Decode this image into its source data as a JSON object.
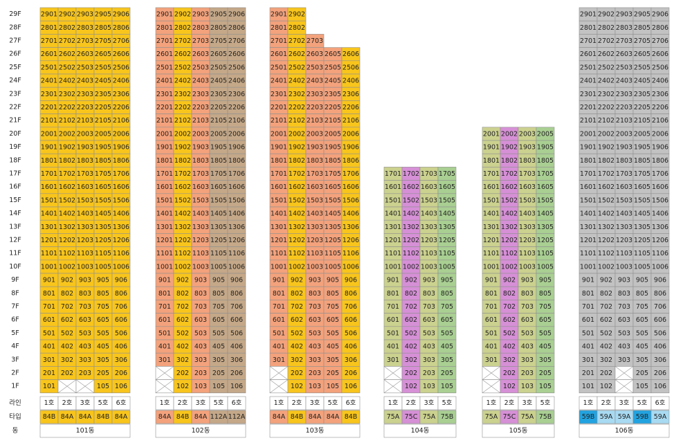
{
  "floors": [
    "29F",
    "28F",
    "27F",
    "26F",
    "25F",
    "24F",
    "23F",
    "22F",
    "21F",
    "20F",
    "19F",
    "18F",
    "17F",
    "16F",
    "15F",
    "14F",
    "13F",
    "12F",
    "11F",
    "10F",
    "9F",
    "8F",
    "7F",
    "6F",
    "5F",
    "4F",
    "3F",
    "2F",
    "1F"
  ],
  "row_headers": [
    "라인",
    "타입",
    "동"
  ],
  "buildings": [
    {
      "name": "101동",
      "lines": [
        "1호",
        "2호",
        "3호",
        "5호",
        "6호"
      ],
      "types": [
        "84B",
        "84A",
        "84A",
        "84B",
        "84A"
      ],
      "colors": [
        "#f8c51c",
        "#f8c51c",
        "#f8c51c",
        "#f8c51c",
        "#f8c51c"
      ],
      "type_colors": [
        "#f8c51c",
        "#f8c51c",
        "#f8c51c",
        "#f8c51c",
        "#f8c51c"
      ],
      "rows": [
        [
          "2901",
          "2902",
          "2903",
          "2905",
          "2906"
        ],
        [
          "2801",
          "2802",
          "2803",
          "2805",
          "2806"
        ],
        [
          "2701",
          "2702",
          "2703",
          "2705",
          "2706"
        ],
        [
          "2601",
          "2602",
          "2603",
          "2605",
          "2606"
        ],
        [
          "2501",
          "2502",
          "2503",
          "2505",
          "2506"
        ],
        [
          "2401",
          "2402",
          "2403",
          "2405",
          "2406"
        ],
        [
          "2301",
          "2302",
          "2303",
          "2305",
          "2306"
        ],
        [
          "2201",
          "2202",
          "2203",
          "2205",
          "2206"
        ],
        [
          "2101",
          "2102",
          "2103",
          "2105",
          "2106"
        ],
        [
          "2001",
          "2002",
          "2003",
          "2005",
          "2006"
        ],
        [
          "1901",
          "1902",
          "1903",
          "1905",
          "1906"
        ],
        [
          "1801",
          "1802",
          "1803",
          "1805",
          "1806"
        ],
        [
          "1701",
          "1702",
          "1703",
          "1705",
          "1706"
        ],
        [
          "1601",
          "1602",
          "1603",
          "1605",
          "1606"
        ],
        [
          "1501",
          "1502",
          "1503",
          "1505",
          "1506"
        ],
        [
          "1401",
          "1402",
          "1403",
          "1405",
          "1406"
        ],
        [
          "1301",
          "1302",
          "1303",
          "1305",
          "1306"
        ],
        [
          "1201",
          "1202",
          "1203",
          "1205",
          "1206"
        ],
        [
          "1101",
          "1102",
          "1103",
          "1105",
          "1106"
        ],
        [
          "1001",
          "1002",
          "1003",
          "1005",
          "1006"
        ],
        [
          "901",
          "902",
          "903",
          "905",
          "906"
        ],
        [
          "801",
          "802",
          "803",
          "805",
          "806"
        ],
        [
          "701",
          "702",
          "703",
          "705",
          "706"
        ],
        [
          "601",
          "602",
          "603",
          "605",
          "606"
        ],
        [
          "501",
          "502",
          "503",
          "505",
          "506"
        ],
        [
          "401",
          "402",
          "403",
          "405",
          "406"
        ],
        [
          "301",
          "302",
          "303",
          "305",
          "306"
        ],
        [
          "201",
          "202",
          "203",
          "205",
          "206"
        ],
        [
          "101",
          null,
          null,
          "105",
          "106"
        ]
      ]
    },
    {
      "name": "102동",
      "lines": [
        "1호",
        "2호",
        "3호",
        "5호",
        "6호"
      ],
      "types": [
        "84A",
        "84B",
        "84A",
        "112A",
        "112A"
      ],
      "colors": [
        "#f3a27c",
        "#f8c51c",
        "#f3a27c",
        "#c4a888",
        "#c4a888"
      ],
      "type_colors": [
        "#f3a27c",
        "#f8c51c",
        "#f3a27c",
        "#c4a888",
        "#c4a888"
      ],
      "rows": [
        [
          "2901",
          "2902",
          "2903",
          "2905",
          "2906"
        ],
        [
          "2801",
          "2802",
          "2803",
          "2805",
          "2806"
        ],
        [
          "2701",
          "2702",
          "2703",
          "2705",
          "2706"
        ],
        [
          "2601",
          "2602",
          "2603",
          "2605",
          "2606"
        ],
        [
          "2501",
          "2502",
          "2503",
          "2505",
          "2506"
        ],
        [
          "2401",
          "2402",
          "2403",
          "2405",
          "2406"
        ],
        [
          "2301",
          "2302",
          "2303",
          "2305",
          "2306"
        ],
        [
          "2201",
          "2202",
          "2203",
          "2205",
          "2206"
        ],
        [
          "2101",
          "2102",
          "2103",
          "2105",
          "2106"
        ],
        [
          "2001",
          "2002",
          "2003",
          "2005",
          "2006"
        ],
        [
          "1901",
          "1902",
          "1903",
          "1905",
          "1906"
        ],
        [
          "1801",
          "1802",
          "1803",
          "1805",
          "1806"
        ],
        [
          "1701",
          "1702",
          "1703",
          "1705",
          "1706"
        ],
        [
          "1601",
          "1602",
          "1603",
          "1605",
          "1606"
        ],
        [
          "1501",
          "1502",
          "1503",
          "1505",
          "1506"
        ],
        [
          "1401",
          "1402",
          "1403",
          "1405",
          "1406"
        ],
        [
          "1301",
          "1302",
          "1303",
          "1305",
          "1306"
        ],
        [
          "1201",
          "1202",
          "1203",
          "1205",
          "1206"
        ],
        [
          "1101",
          "1102",
          "1103",
          "1105",
          "1106"
        ],
        [
          "1001",
          "1002",
          "1003",
          "1005",
          "1006"
        ],
        [
          "901",
          "902",
          "903",
          "905",
          "906"
        ],
        [
          "801",
          "802",
          "803",
          "805",
          "806"
        ],
        [
          "701",
          "702",
          "703",
          "705",
          "706"
        ],
        [
          "601",
          "602",
          "603",
          "605",
          "606"
        ],
        [
          "501",
          "502",
          "503",
          "505",
          "506"
        ],
        [
          "401",
          "402",
          "403",
          "405",
          "406"
        ],
        [
          "301",
          "302",
          "303",
          "305",
          "306"
        ],
        [
          null,
          "202",
          "203",
          "205",
          "206"
        ],
        [
          null,
          "102",
          "103",
          "105",
          "106"
        ]
      ]
    },
    {
      "name": "103동",
      "lines": [
        "1호",
        "2호",
        "3호",
        "5호",
        "6호"
      ],
      "types": [
        "84A",
        "84B",
        "84A",
        "84A",
        "84B"
      ],
      "colors": [
        "#f3a27c",
        "#f8c51c",
        "#f3a27c",
        "#f3a27c",
        "#f8c51c"
      ],
      "type_colors": [
        "#f3a27c",
        "#f8c51c",
        "#f3a27c",
        "#f3a27c",
        "#f8c51c"
      ],
      "rows": [
        [
          "2901",
          "2902"
        ],
        [
          "2801",
          "2802"
        ],
        [
          "2701",
          "2702",
          "2703"
        ],
        [
          "2601",
          "2602",
          "2603",
          "2605",
          "2606"
        ],
        [
          "2501",
          "2502",
          "2503",
          "2505",
          "2506"
        ],
        [
          "2401",
          "2402",
          "2403",
          "2405",
          "2406"
        ],
        [
          "2301",
          "2302",
          "2303",
          "2305",
          "2306"
        ],
        [
          "2201",
          "2202",
          "2203",
          "2205",
          "2206"
        ],
        [
          "2101",
          "2102",
          "2103",
          "2105",
          "2106"
        ],
        [
          "2001",
          "2002",
          "2003",
          "2005",
          "2006"
        ],
        [
          "1901",
          "1902",
          "1903",
          "1905",
          "1906"
        ],
        [
          "1801",
          "1802",
          "1803",
          "1805",
          "1806"
        ],
        [
          "1701",
          "1702",
          "1703",
          "1705",
          "1706"
        ],
        [
          "1601",
          "1602",
          "1603",
          "1605",
          "1606"
        ],
        [
          "1501",
          "1502",
          "1503",
          "1505",
          "1506"
        ],
        [
          "1401",
          "1402",
          "1403",
          "1405",
          "1406"
        ],
        [
          "1301",
          "1302",
          "1303",
          "1305",
          "1306"
        ],
        [
          "1201",
          "1202",
          "1203",
          "1205",
          "1206"
        ],
        [
          "1101",
          "1102",
          "1103",
          "1105",
          "1106"
        ],
        [
          "1001",
          "1002",
          "1003",
          "1005",
          "1006"
        ],
        [
          "901",
          "902",
          "903",
          "905",
          "906"
        ],
        [
          "801",
          "802",
          "803",
          "805",
          "806"
        ],
        [
          "701",
          "702",
          "703",
          "705",
          "706"
        ],
        [
          "601",
          "602",
          "603",
          "605",
          "606"
        ],
        [
          "501",
          "502",
          "503",
          "505",
          "506"
        ],
        [
          "401",
          "402",
          "403",
          "405",
          "406"
        ],
        [
          "301",
          "302",
          "303",
          "305",
          "306"
        ],
        [
          null,
          "202",
          "203",
          "205",
          "206"
        ],
        [
          null,
          "102",
          "103",
          "105",
          "106"
        ]
      ]
    },
    {
      "name": "104동",
      "lines": [
        "1호",
        "2호",
        "3호",
        "5호"
      ],
      "types": [
        "75A",
        "75C",
        "75A",
        "75B"
      ],
      "colors": [
        "#cbd18e",
        "#d690d6",
        "#cbd18e",
        "#a9cf92"
      ],
      "type_colors": [
        "#cbd18e",
        "#d690d6",
        "#cbd18e",
        "#a9cf92"
      ],
      "rows": [
        [
          "1701",
          "1702",
          "1703",
          "1705"
        ],
        [
          "1601",
          "1602",
          "1603",
          "1605"
        ],
        [
          "1501",
          "1502",
          "1503",
          "1505"
        ],
        [
          "1401",
          "1402",
          "1403",
          "1405"
        ],
        [
          "1301",
          "1302",
          "1303",
          "1305"
        ],
        [
          "1201",
          "1202",
          "1203",
          "1205"
        ],
        [
          "1101",
          "1102",
          "1103",
          "1105"
        ],
        [
          "1001",
          "1002",
          "1003",
          "1005"
        ],
        [
          "901",
          "902",
          "903",
          "905"
        ],
        [
          "801",
          "802",
          "803",
          "805"
        ],
        [
          "701",
          "702",
          "703",
          "705"
        ],
        [
          "601",
          "602",
          "603",
          "605"
        ],
        [
          "501",
          "502",
          "503",
          "505"
        ],
        [
          "401",
          "402",
          "403",
          "405"
        ],
        [
          "301",
          "302",
          "303",
          "305"
        ],
        [
          null,
          "202",
          "203",
          "205"
        ],
        [
          null,
          "102",
          "103",
          "105"
        ]
      ]
    },
    {
      "name": "105동",
      "lines": [
        "1호",
        "2호",
        "3호",
        "5호"
      ],
      "types": [
        "75A",
        "75C",
        "75A",
        "75B"
      ],
      "colors": [
        "#cbd18e",
        "#d690d6",
        "#cbd18e",
        "#a9cf92"
      ],
      "type_colors": [
        "#cbd18e",
        "#d690d6",
        "#cbd18e",
        "#a9cf92"
      ],
      "rows": [
        [
          "2001",
          "2002",
          "2003",
          "2005"
        ],
        [
          "1901",
          "1902",
          "1903",
          "1905"
        ],
        [
          "1801",
          "1802",
          "1803",
          "1805"
        ],
        [
          "1701",
          "1702",
          "1703",
          "1705"
        ],
        [
          "1601",
          "1602",
          "1603",
          "1605"
        ],
        [
          "1501",
          "1502",
          "1503",
          "1505"
        ],
        [
          "1401",
          "1402",
          "1403",
          "1405"
        ],
        [
          "1301",
          "1302",
          "1303",
          "1305"
        ],
        [
          "1201",
          "1202",
          "1203",
          "1205"
        ],
        [
          "1101",
          "1102",
          "1103",
          "1105"
        ],
        [
          "1001",
          "1002",
          "1003",
          "1005"
        ],
        [
          "901",
          "902",
          "903",
          "905"
        ],
        [
          "801",
          "802",
          "803",
          "805"
        ],
        [
          "701",
          "702",
          "703",
          "705"
        ],
        [
          "601",
          "602",
          "603",
          "605"
        ],
        [
          "501",
          "502",
          "503",
          "505"
        ],
        [
          "401",
          "402",
          "403",
          "405"
        ],
        [
          "301",
          "302",
          "303",
          "305"
        ],
        [
          null,
          "202",
          "203",
          "205"
        ],
        [
          null,
          "102",
          "103",
          "105"
        ]
      ]
    },
    {
      "name": "106동",
      "lines": [
        "1호",
        "2호",
        "3호",
        "5호",
        "6호"
      ],
      "types": [
        "59B",
        "59A",
        "59A",
        "59B",
        "59A"
      ],
      "colors": [
        "#c2c2c2",
        "#c2c2c2",
        "#c2c2c2",
        "#c2c2c2",
        "#c2c2c2"
      ],
      "type_colors": [
        "#22a3e0",
        "#a8daf2",
        "#a8daf2",
        "#22a3e0",
        "#a8daf2"
      ],
      "rows": [
        [
          "2901",
          "2902",
          "2903",
          "2905",
          "2906"
        ],
        [
          "2801",
          "2802",
          "2803",
          "2805",
          "2806"
        ],
        [
          "2701",
          "2702",
          "2703",
          "2705",
          "2706"
        ],
        [
          "2601",
          "2602",
          "2603",
          "2605",
          "2606"
        ],
        [
          "2501",
          "2502",
          "2503",
          "2505",
          "2506"
        ],
        [
          "2401",
          "2402",
          "2403",
          "2405",
          "2406"
        ],
        [
          "2301",
          "2302",
          "2303",
          "2305",
          "2306"
        ],
        [
          "2201",
          "2202",
          "2203",
          "2205",
          "2206"
        ],
        [
          "2101",
          "2102",
          "2103",
          "2105",
          "2106"
        ],
        [
          "2001",
          "2002",
          "2003",
          "2005",
          "2006"
        ],
        [
          "1901",
          "1902",
          "1903",
          "1905",
          "1906"
        ],
        [
          "1801",
          "1802",
          "1803",
          "1805",
          "1806"
        ],
        [
          "1701",
          "1702",
          "1703",
          "1705",
          "1706"
        ],
        [
          "1601",
          "1602",
          "1603",
          "1605",
          "1606"
        ],
        [
          "1501",
          "1502",
          "1503",
          "1505",
          "1506"
        ],
        [
          "1401",
          "1402",
          "1403",
          "1405",
          "1406"
        ],
        [
          "1301",
          "1302",
          "1303",
          "1305",
          "1306"
        ],
        [
          "1201",
          "1202",
          "1203",
          "1205",
          "1206"
        ],
        [
          "1101",
          "1102",
          "1103",
          "1105",
          "1106"
        ],
        [
          "1001",
          "1002",
          "1003",
          "1005",
          "1006"
        ],
        [
          "901",
          "902",
          "903",
          "905",
          "906"
        ],
        [
          "801",
          "802",
          "803",
          "805",
          "806"
        ],
        [
          "701",
          "702",
          "703",
          "705",
          "706"
        ],
        [
          "601",
          "602",
          "603",
          "605",
          "606"
        ],
        [
          "501",
          "502",
          "503",
          "505",
          "506"
        ],
        [
          "401",
          "402",
          "403",
          "405",
          "406"
        ],
        [
          "301",
          "302",
          "303",
          "305",
          "306"
        ],
        [
          "201",
          "202",
          null,
          "205",
          "206"
        ],
        [
          "101",
          "102",
          null,
          "105",
          "106"
        ]
      ]
    }
  ]
}
